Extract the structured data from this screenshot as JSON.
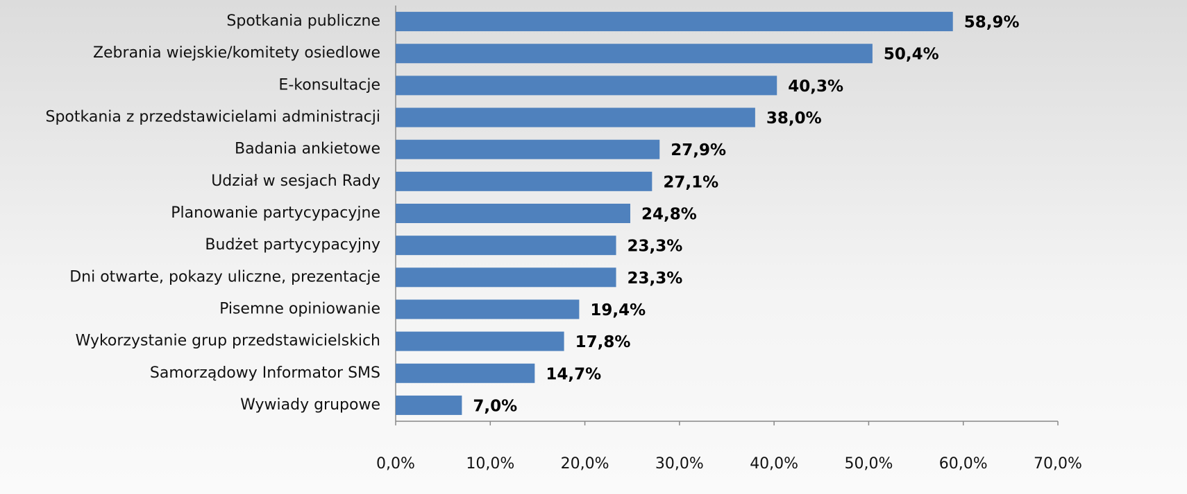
{
  "chart_data": {
    "type": "barh",
    "categories": [
      "Spotkania publiczne",
      "Zebrania wiejskie/komitety osiedlowe",
      "E-konsultacje",
      "Spotkania z przedstawicielami administracji",
      "Badania ankietowe",
      "Udział w sesjach Rady",
      "Planowanie partycypacyjne",
      "Budżet partycypacyjny",
      "Dni otwarte, pokazy uliczne, prezentacje",
      "Pisemne opiniowanie",
      "Wykorzystanie grup przedstawicielskich",
      "Samorządowy Informator SMS",
      "Wywiady grupowe"
    ],
    "values": [
      58.9,
      50.4,
      40.3,
      38.0,
      27.9,
      27.1,
      24.8,
      23.3,
      23.3,
      19.4,
      17.8,
      14.7,
      7.0
    ],
    "value_labels": [
      "58,9%",
      "50,4%",
      "40,3%",
      "38,0%",
      "27,9%",
      "27,1%",
      "24,8%",
      "23,3%",
      "23,3%",
      "19,4%",
      "17,8%",
      "14,7%",
      "7,0%"
    ],
    "color": "#4f81bd",
    "xlim": [
      0,
      70
    ],
    "xticks": [
      {
        "value": 0,
        "label": "0,0%"
      },
      {
        "value": 10,
        "label": "10,0%"
      },
      {
        "value": 20,
        "label": "20,0%"
      },
      {
        "value": 30,
        "label": "30,0%"
      },
      {
        "value": 40,
        "label": "40,0%"
      },
      {
        "value": 50,
        "label": "50,0%"
      },
      {
        "value": 60,
        "label": "60,0%"
      },
      {
        "value": 70,
        "label": "70,0%"
      }
    ],
    "grid": false
  }
}
